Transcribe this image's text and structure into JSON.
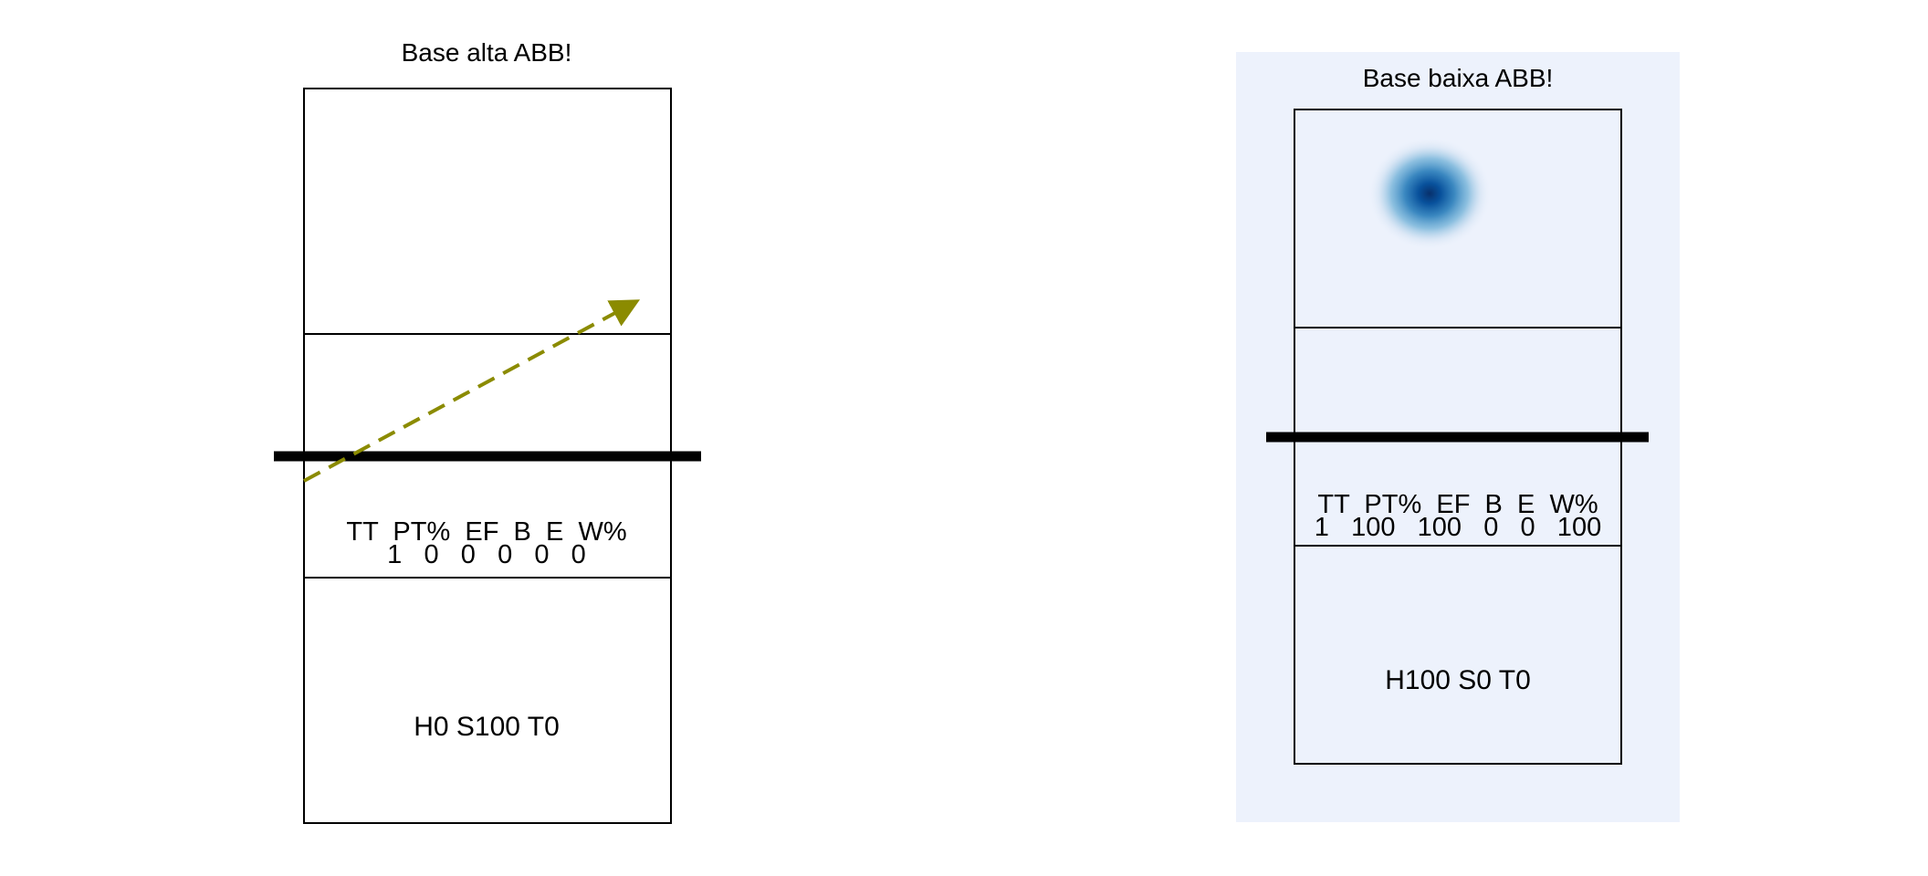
{
  "courts": [
    {
      "title": "Base alta ABB!",
      "stats_header": "TT  PT%  EF  B  E  W%",
      "stats_values": "1   0   0   0   0   0",
      "distribution": "H0 S100 T0",
      "highlighted": false,
      "has_arrow": true,
      "arrow_color": "#8b8b00",
      "has_heatmap": false
    },
    {
      "title": "Base baixa ABB!",
      "stats_header": "TT  PT%  EF  B  E  W%",
      "stats_values": "1   100   100   0   0   100",
      "distribution": "H100 S0 T0",
      "highlighted": true,
      "highlight_color": "#edf2fc",
      "has_arrow": false,
      "has_heatmap": true,
      "heatmap_color": "#08519c"
    }
  ]
}
